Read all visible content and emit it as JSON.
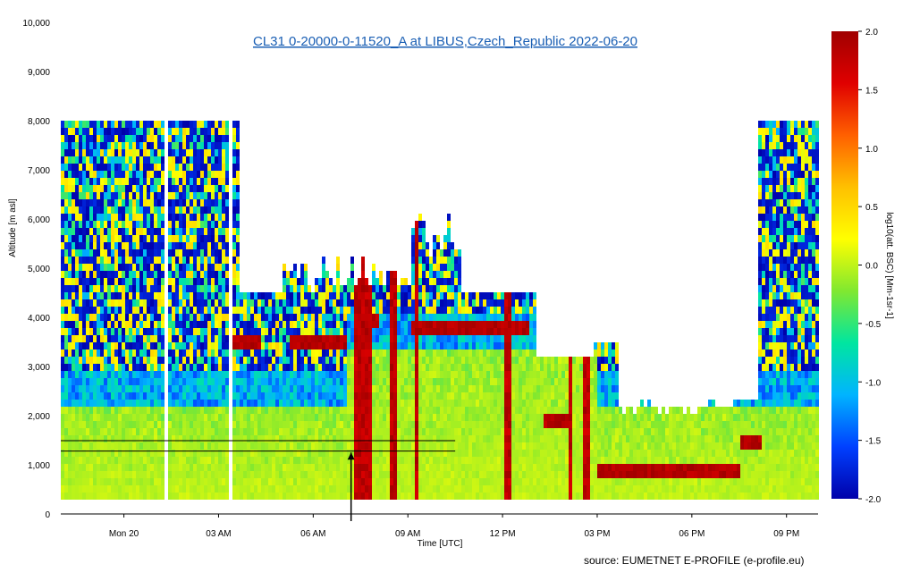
{
  "chart_data": {
    "type": "heatmap",
    "title": "CL31 0-20000-0-11520_A at LIBUS,Czech_Republic 2022-06-20",
    "xlabel": "Time [UTC]",
    "ylabel": "Altitude [m asl]",
    "x_ticks": [
      {
        "label": "Mon 20",
        "hour": 0
      },
      {
        "label": "03 AM",
        "hour": 3
      },
      {
        "label": "06 AM",
        "hour": 6
      },
      {
        "label": "09 AM",
        "hour": 9
      },
      {
        "label": "12 PM",
        "hour": 12
      },
      {
        "label": "03 PM",
        "hour": 15
      },
      {
        "label": "06 PM",
        "hour": 18
      },
      {
        "label": "09 PM",
        "hour": 21
      }
    ],
    "xlim_hours": [
      -2.0,
      22.0
    ],
    "y_ticks": [
      {
        "label": "0",
        "value": 0
      },
      {
        "label": "1,000",
        "value": 1000
      },
      {
        "label": "2,000",
        "value": 2000
      },
      {
        "label": "3,000",
        "value": 3000
      },
      {
        "label": "4,000",
        "value": 4000
      },
      {
        "label": "5,000",
        "value": 5000
      },
      {
        "label": "6,000",
        "value": 6000
      },
      {
        "label": "7,000",
        "value": 7000
      },
      {
        "label": "8,000",
        "value": 8000
      },
      {
        "label": "9,000",
        "value": 9000
      },
      {
        "label": "10,000",
        "value": 10000
      }
    ],
    "ylim": [
      0,
      10000
    ],
    "data_altitude_range": [
      330,
      8000
    ],
    "colorbar": {
      "label": "log10(att. BSC) [Mm-1sr-1]",
      "range": [
        -2.0,
        2.0
      ],
      "ticks": [
        {
          "label": "2.0",
          "value": 2.0
        },
        {
          "label": "1.5",
          "value": 1.5
        },
        {
          "label": "1.0",
          "value": 1.0
        },
        {
          "label": "0.5",
          "value": 0.5
        },
        {
          "label": "0.0",
          "value": 0.0
        },
        {
          "label": "-0.5",
          "value": -0.5
        },
        {
          "label": "-1.0",
          "value": -1.0
        },
        {
          "label": "-1.5",
          "value": -1.5
        },
        {
          "label": "-2.0",
          "value": -2.0
        }
      ],
      "colors": [
        "#0000aa",
        "#0040ff",
        "#00b4ff",
        "#00e6a0",
        "#80e830",
        "#ffff00",
        "#ffc000",
        "#ff6000",
        "#e00000",
        "#a00000"
      ]
    },
    "gaps_hours": [
      1.25,
      3.3
    ],
    "cloud_layers": [
      {
        "start_hour": 3.3,
        "end_hour": 4.3,
        "altitude": 3600
      },
      {
        "start_hour": 5.2,
        "end_hour": 7.0,
        "altitude": 3550
      },
      {
        "start_hour": 7.2,
        "end_hour": 8.0,
        "altitude": 4000
      },
      {
        "start_hour": 9.0,
        "end_hour": 12.8,
        "altitude": 3800
      },
      {
        "start_hour": 13.2,
        "end_hour": 14.0,
        "altitude": 2000
      },
      {
        "start_hour": 15.0,
        "end_hour": 19.5,
        "altitude": 950
      },
      {
        "start_hour": 19.5,
        "end_hour": 20.2,
        "altitude": 1550
      }
    ],
    "precipitation_columns": [
      {
        "start_hour": 7.2,
        "end_hour": 7.8
      },
      {
        "start_hour": 8.4,
        "end_hour": 8.6
      },
      {
        "start_hour": 9.2,
        "end_hour": 9.3
      },
      {
        "start_hour": 12.0,
        "end_hour": 12.2
      },
      {
        "start_hour": 14.0,
        "end_hour": 14.2
      },
      {
        "start_hour": 14.5,
        "end_hour": 14.7
      }
    ],
    "reference_lines_altitude": [
      1280,
      1490
    ],
    "marker_hour": 7.2,
    "source": "source:  EUMETNET E-PROFILE (e-profile.eu)"
  }
}
